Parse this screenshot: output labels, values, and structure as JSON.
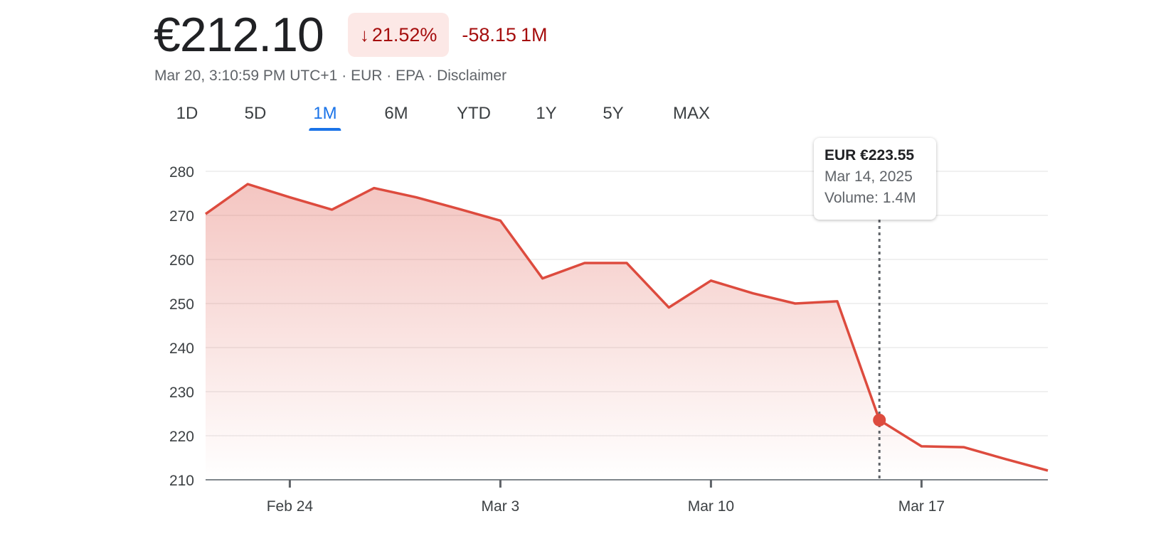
{
  "header": {
    "price": "€212.10",
    "change_percent": "21.52%",
    "change_abs": "-58.15",
    "change_period": "1M",
    "timestamp": "Mar 20, 3:10:59 PM UTC+1",
    "currency": "EUR",
    "exchange": "EPA",
    "disclaimer": "Disclaimer",
    "separator": "·"
  },
  "tabs": [
    {
      "label": "1D",
      "active": false
    },
    {
      "label": "5D",
      "active": false
    },
    {
      "label": "1M",
      "active": true
    },
    {
      "label": "6M",
      "active": false
    },
    {
      "label": "YTD",
      "active": false
    },
    {
      "label": "1Y",
      "active": false
    },
    {
      "label": "5Y",
      "active": false
    },
    {
      "label": "MAX",
      "active": false
    }
  ],
  "tooltip": {
    "price": "EUR €223.55",
    "date": "Mar 14, 2025",
    "volume_label": "Volume:",
    "volume": "1.4M"
  },
  "colors": {
    "line": "#dd4b3e",
    "negative": "#a50e0e",
    "badge_bg": "#fce8e6",
    "accent": "#1a73e8"
  },
  "chart_data": {
    "type": "area",
    "title": "",
    "xlabel": "",
    "ylabel": "",
    "ylim": [
      210,
      280
    ],
    "y_ticks": [
      210,
      220,
      230,
      240,
      250,
      260,
      270,
      280
    ],
    "x_ticks": [
      "Feb 24",
      "Mar 3",
      "Mar 10",
      "Mar 17"
    ],
    "x": [
      "Feb 20",
      "Feb 21",
      "Feb 24",
      "Feb 25",
      "Feb 26",
      "Feb 27",
      "Feb 28",
      "Mar 3",
      "Mar 4",
      "Mar 5",
      "Mar 6",
      "Mar 7",
      "Mar 10",
      "Mar 11",
      "Mar 12",
      "Mar 13",
      "Mar 14",
      "Mar 17",
      "Mar 18",
      "Mar 19",
      "Mar 20"
    ],
    "values": [
      270.3,
      277.1,
      274.1,
      271.3,
      276.2,
      274.1,
      271.5,
      268.8,
      255.7,
      259.2,
      259.2,
      249.1,
      255.2,
      252.3,
      250.0,
      250.5,
      223.55,
      217.6,
      217.4,
      214.7,
      212.1
    ],
    "highlight": {
      "x": "Mar 14",
      "value": 223.55
    },
    "grid": true
  }
}
